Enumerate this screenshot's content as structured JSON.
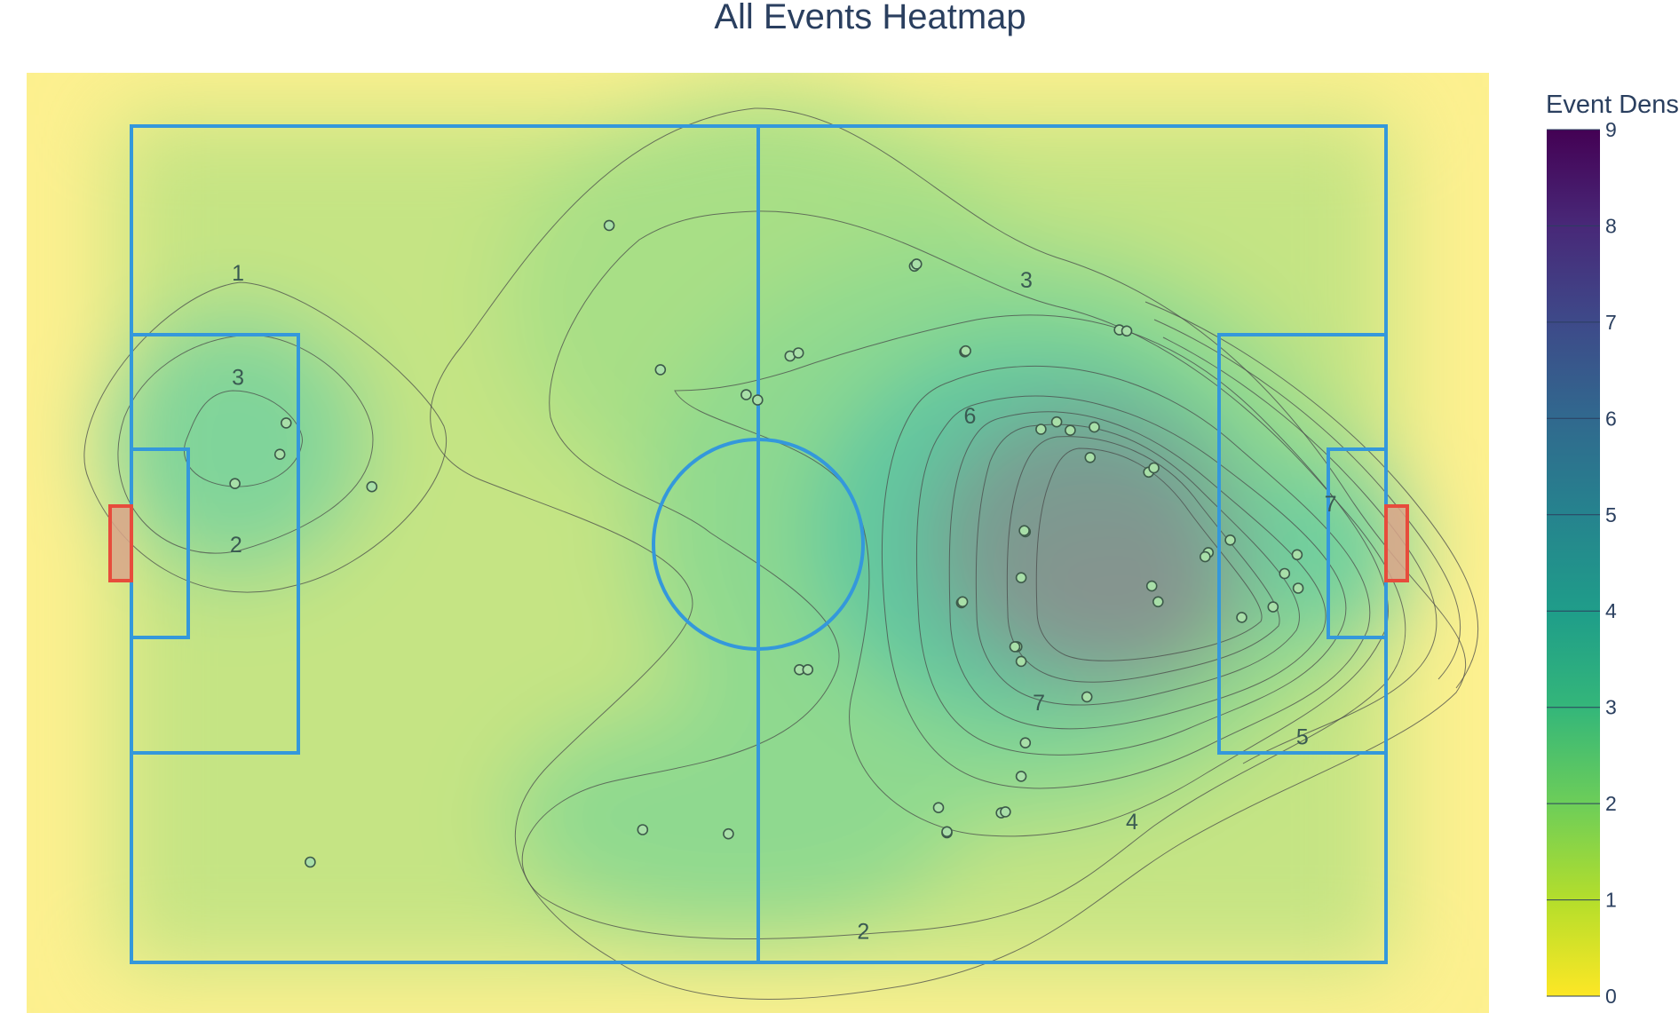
{
  "chart_data": {
    "type": "heatmap",
    "title": "All Events Heatmap",
    "colorbar": {
      "title": "Event Density",
      "min": 0,
      "max": 9,
      "ticks": [
        0,
        1,
        2,
        3,
        4,
        5,
        6,
        7,
        8,
        9
      ],
      "colorscale": [
        "#fde725",
        "#b5de2b",
        "#6ece58",
        "#35b779",
        "#1f9e89",
        "#26828e",
        "#31688e",
        "#3e4989",
        "#482878",
        "#440154"
      ]
    },
    "pitch": {
      "length": 120,
      "width": 80
    },
    "xlim": [
      -10,
      130
    ],
    "ylim": [
      -5,
      85
    ],
    "events": [
      {
        "x": 45.7,
        "y": 70.5
      },
      {
        "x": 74.9,
        "y": 66.6
      },
      {
        "x": 75.1,
        "y": 66.8
      },
      {
        "x": 50.6,
        "y": 56.7
      },
      {
        "x": 63.0,
        "y": 58.0
      },
      {
        "x": 63.8,
        "y": 58.3
      },
      {
        "x": 79.7,
        "y": 58.4
      },
      {
        "x": 79.8,
        "y": 58.5
      },
      {
        "x": 94.5,
        "y": 60.5
      },
      {
        "x": 95.2,
        "y": 60.4
      },
      {
        "x": 58.8,
        "y": 54.3
      },
      {
        "x": 59.9,
        "y": 53.8
      },
      {
        "x": 14.8,
        "y": 51.6
      },
      {
        "x": 14.2,
        "y": 48.6
      },
      {
        "x": 9.9,
        "y": 45.8
      },
      {
        "x": 23.0,
        "y": 45.5
      },
      {
        "x": 87.0,
        "y": 51.0
      },
      {
        "x": 88.5,
        "y": 51.7
      },
      {
        "x": 89.8,
        "y": 50.9
      },
      {
        "x": 92.1,
        "y": 51.2
      },
      {
        "x": 91.7,
        "y": 48.3
      },
      {
        "x": 97.3,
        "y": 46.9
      },
      {
        "x": 97.8,
        "y": 47.3
      },
      {
        "x": 85.5,
        "y": 41.2
      },
      {
        "x": 85.4,
        "y": 41.3
      },
      {
        "x": 105.1,
        "y": 40.4
      },
      {
        "x": 103.0,
        "y": 39.2
      },
      {
        "x": 102.7,
        "y": 38.8
      },
      {
        "x": 111.5,
        "y": 39.0
      },
      {
        "x": 110.3,
        "y": 37.2
      },
      {
        "x": 111.6,
        "y": 35.8
      },
      {
        "x": 85.1,
        "y": 36.8
      },
      {
        "x": 97.6,
        "y": 36.0
      },
      {
        "x": 98.2,
        "y": 34.5
      },
      {
        "x": 79.4,
        "y": 34.4
      },
      {
        "x": 79.5,
        "y": 34.5
      },
      {
        "x": 106.2,
        "y": 33.0
      },
      {
        "x": 109.2,
        "y": 34.0
      },
      {
        "x": 84.7,
        "y": 30.2
      },
      {
        "x": 84.5,
        "y": 30.2
      },
      {
        "x": 85.1,
        "y": 28.8
      },
      {
        "x": 63.9,
        "y": 28.0
      },
      {
        "x": 64.7,
        "y": 28.0
      },
      {
        "x": 91.4,
        "y": 25.4
      },
      {
        "x": 85.5,
        "y": 21.0
      },
      {
        "x": 85.1,
        "y": 17.8
      },
      {
        "x": 77.2,
        "y": 14.8
      },
      {
        "x": 83.2,
        "y": 14.3
      },
      {
        "x": 83.6,
        "y": 14.4
      },
      {
        "x": 78.0,
        "y": 12.4
      },
      {
        "x": 78.0,
        "y": 12.5
      },
      {
        "x": 48.9,
        "y": 12.7
      },
      {
        "x": 57.1,
        "y": 12.3
      },
      {
        "x": 17.1,
        "y": 9.6
      }
    ],
    "contour_labels": [
      {
        "text": "1",
        "x": 10.2,
        "y": 66.0
      },
      {
        "text": "3",
        "x": 10.2,
        "y": 56.0
      },
      {
        "text": "2",
        "x": 10.0,
        "y": 40.0
      },
      {
        "text": "3",
        "x": 85.6,
        "y": 65.3
      },
      {
        "text": "6",
        "x": 80.2,
        "y": 52.3
      },
      {
        "text": "7",
        "x": 86.8,
        "y": 24.9
      },
      {
        "text": "4",
        "x": 95.7,
        "y": 13.5
      },
      {
        "text": "5",
        "x": 112.0,
        "y": 21.6
      },
      {
        "text": "7",
        "x": 114.7,
        "y": 43.9
      },
      {
        "text": "2",
        "x": 70.0,
        "y": 3.0
      }
    ]
  }
}
